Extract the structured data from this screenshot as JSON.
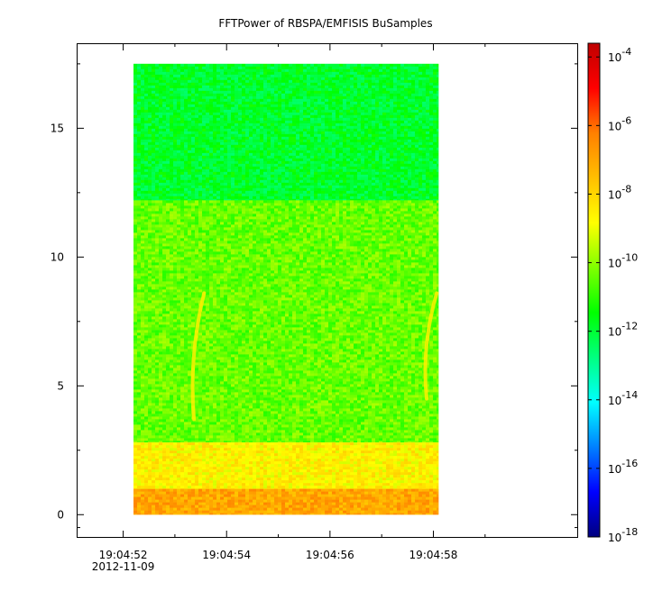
{
  "chart_data": {
    "type": "heatmap",
    "title": "FFTPower of RBSPA/EMFISIS  BuSamples",
    "xlabel": "",
    "ylabel": "",
    "x_range": [
      "19:04:51.1",
      "19:05:00.8"
    ],
    "data_time_range": [
      "19:04:52.2",
      "19:04:58.1"
    ],
    "y_range": [
      -0.9,
      18.3
    ],
    "data_y_range": [
      0,
      17.5
    ],
    "x_ticks": [
      {
        "label": "19:04:52",
        "sublabel": "2012-11-09",
        "t": 52
      },
      {
        "label": "19:04:54",
        "t": 54
      },
      {
        "label": "19:04:56",
        "t": 56
      },
      {
        "label": "19:04:58",
        "t": 58
      }
    ],
    "x_minor_ticks": [
      53,
      55,
      57,
      59
    ],
    "y_ticks": [
      0,
      5,
      10,
      15
    ],
    "y_minor_ticks": [
      -0.5,
      2.5,
      7.5,
      12.5,
      17.5
    ],
    "colorbar": {
      "scale": "log",
      "range_exp": [
        -18,
        -3.6
      ],
      "tick_labels": [
        {
          "base": "10",
          "exp": "-4",
          "value_exp": -4
        },
        {
          "base": "10",
          "exp": "-6",
          "value_exp": -6
        },
        {
          "base": "10",
          "exp": "-8",
          "value_exp": -8
        },
        {
          "base": "10",
          "exp": "-10",
          "value_exp": -10
        },
        {
          "base": "10",
          "exp": "-12",
          "value_exp": -12
        },
        {
          "base": "10",
          "exp": "-14",
          "value_exp": -14
        },
        {
          "base": "10",
          "exp": "-16",
          "value_exp": -16
        },
        {
          "base": "10",
          "exp": "-18",
          "value_exp": -18
        }
      ],
      "colors": [
        "#00007f",
        "#0000ff",
        "#0080ff",
        "#00ffff",
        "#00ff80",
        "#00ff00",
        "#80ff00",
        "#ffff00",
        "#ffbf00",
        "#ff8000",
        "#ff0000",
        "#bf0000"
      ]
    },
    "bands": [
      {
        "y": [
          12.2,
          17.5
        ],
        "log_power": -11.9
      },
      {
        "y": [
          2.8,
          12.2
        ],
        "log_power": -10.4
      },
      {
        "y": [
          1.0,
          2.8
        ],
        "log_power": -8.6
      },
      {
        "y": [
          0,
          1.0
        ],
        "log_power": -7.0
      }
    ],
    "features": [
      {
        "t": [
          53.3,
          53.6
        ],
        "y": [
          3.7,
          8.6
        ],
        "log_power": -8.5
      },
      {
        "t": [
          57.8,
          58.1
        ],
        "y": [
          4.5,
          8.6
        ],
        "log_power": -8.5
      }
    ],
    "grid": false,
    "legend": "none"
  }
}
